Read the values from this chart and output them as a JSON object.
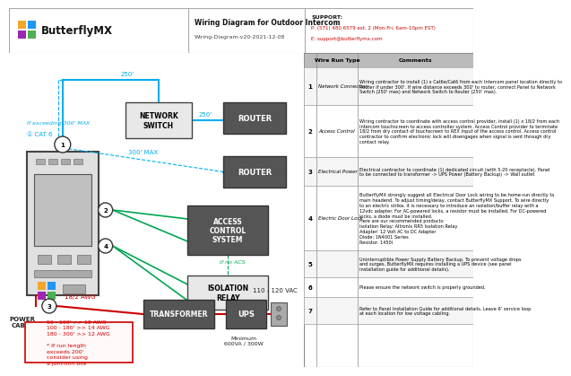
{
  "title": "Wiring Diagram for Outdoor Intercom",
  "subtitle": "Wiring-Diagram-v20-2021-12-08",
  "support_label": "SUPPORT:",
  "support_phone": "P: (571) 480.6579 ext. 2 (Mon-Fri, 6am-10pm EST)",
  "support_email": "E: support@butterflymx.com",
  "bg_color": "#ffffff",
  "wire_run_rows": [
    {
      "num": "1",
      "type": "Network Connection",
      "comment": "Wiring contractor to install (1) x Cat6e/Cat6 from each Intercom panel location directly to\nRouter if under 300'. If wire distance exceeds 300' to router, connect Panel to Network\nSwitch (250' max) and Network Switch to Router (250' max)."
    },
    {
      "num": "2",
      "type": "Access Control",
      "comment": "Wiring contractor to coordinate with access control provider, install (1) x 18/2 from each\nIntercom touchscreen to access controller system. Access Control provider to terminate\n18/2 from dry contact of touchscreen to REX Input of the access control. Access control\ncontractor to confirm electronic lock will disengages when signal is sent through dry\ncontact relay."
    },
    {
      "num": "3",
      "type": "Electrical Power",
      "comment": "Electrical contractor to coordinate (1) dedicated circuit (with 5-20 receptacle). Panel\nto be connected to transformer -> UPS Power (Battery Backup) -> Wall outlet"
    },
    {
      "num": "4",
      "type": "Electric Door Lock",
      "comment": "ButterflyMX strongly suggest all Electrical Door Lock wiring to be home-run directly to\nmain headend. To adjust timing/delay, contact ButterflyMX Support. To wire directly\nto an electric strike, it is necessary to introduce an isolation/buffer relay with a\n12vdc adapter. For AC-powered locks, a resistor must be installed. For DC-powered\nlocks, a diode must be installed.\nHere are our recommended products:\nIsolation Relay: Altronix RR5 Isolation Relay\nAdapter: 12 Volt AC to DC Adapter\nDiode: 1N4001 Series\nResistor: 1450i"
    },
    {
      "num": "5",
      "type": "",
      "comment": "Uninterruptible Power Supply Battery Backup. To prevent voltage drops\nand surges, ButterflyMX requires installing a UPS device (see panel\ninstallation guide for additional details)."
    },
    {
      "num": "6",
      "type": "",
      "comment": "Please ensure the network switch is properly grounded."
    },
    {
      "num": "7",
      "type": "",
      "comment": "Refer to Panel Installation Guide for additional details. Leave 6' service loop\nat each location for low voltage cabling."
    }
  ],
  "cyan": "#00aeef",
  "green": "#00a651",
  "red_line": "#cc0000",
  "red_text": "#cc0000",
  "dark_gray": "#555555",
  "black": "#000000",
  "logo_orange": "#f4a62a",
  "logo_blue": "#2196f3",
  "logo_purple": "#9c27b0",
  "logo_green": "#4caf50"
}
